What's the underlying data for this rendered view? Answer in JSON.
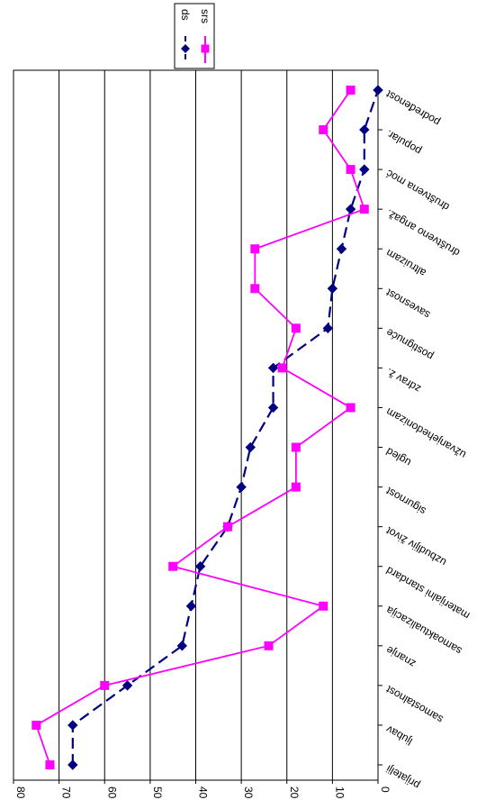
{
  "chart_data": {
    "type": "line",
    "categories": [
      "prijatelji",
      "ljubav",
      "samostalnost",
      "znanje",
      "samoaktualizacija",
      "materijalni standard",
      "uzbudljiv život",
      "sigurnost",
      "ugled",
      "užvanjehedonizam",
      "zdrav ž.",
      "postignuće",
      "savesnost",
      "altruizam",
      "društveno angaž.",
      "društvena moć",
      "popular.",
      "podređenost"
    ],
    "series": [
      {
        "name": "ds",
        "values": [
          67,
          67,
          55,
          43,
          41,
          39,
          33,
          30,
          28,
          23,
          23,
          11,
          10,
          8,
          6,
          3,
          3,
          0
        ],
        "color": "#000080",
        "dashed": true,
        "marker": "diamond"
      },
      {
        "name": "srs",
        "values": [
          72,
          75,
          60,
          24,
          12,
          45,
          33,
          18,
          18,
          6,
          21,
          18,
          27,
          27,
          3,
          6,
          12,
          6
        ],
        "color": "#ff00ff",
        "dashed": false,
        "marker": "square"
      }
    ],
    "ylim": [
      0,
      80
    ],
    "yticks": [
      0,
      10,
      20,
      30,
      40,
      50,
      60,
      70,
      80
    ],
    "grid": true,
    "legend": "top",
    "rotation": "90 degrees clockwise"
  }
}
